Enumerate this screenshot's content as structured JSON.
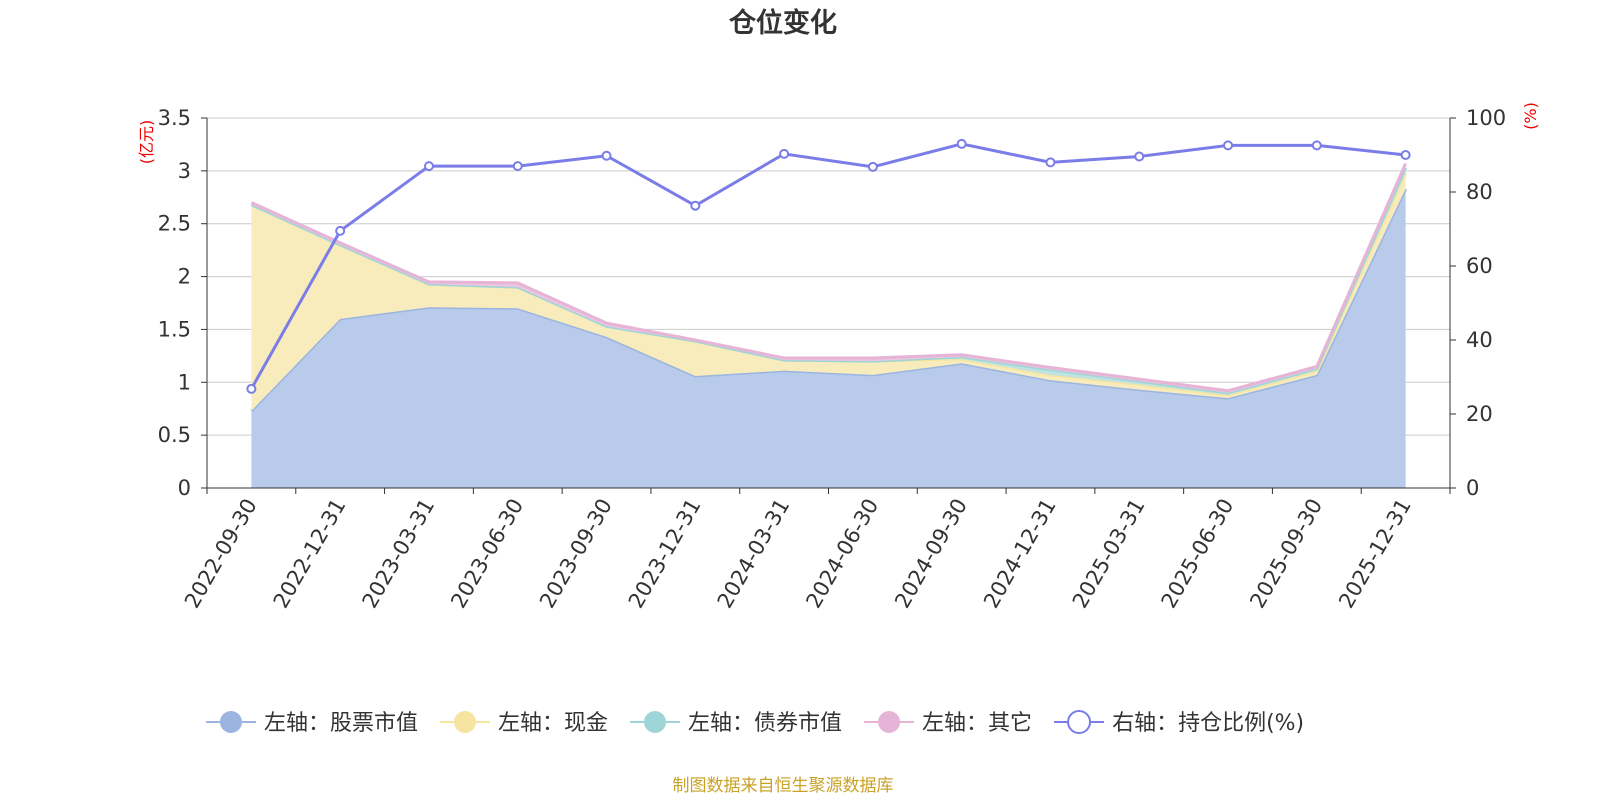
{
  "chart_data": {
    "type": "area",
    "title": "仓位变化",
    "source": "制图数据来自恒生聚源数据库",
    "left_axis_unit": "(亿元)",
    "right_axis_unit": "(%)",
    "left_ylim": [
      0,
      3.5
    ],
    "right_ylim": [
      0,
      100
    ],
    "left_ticks": [
      "0",
      "0.5",
      "1",
      "1.5",
      "2",
      "2.5",
      "3",
      "3.5"
    ],
    "right_ticks": [
      "0",
      "20",
      "40",
      "60",
      "80",
      "100"
    ],
    "categories": [
      "2022-09-30",
      "2022-12-31",
      "2023-03-31",
      "2023-06-30",
      "2023-09-30",
      "2023-12-31",
      "2024-03-31",
      "2024-06-30",
      "2024-09-30",
      "2024-12-31",
      "2025-03-31",
      "2025-06-30",
      "2025-09-30",
      "2025-12-31"
    ],
    "series": [
      {
        "name": "左轴：股票市值",
        "axis": "left",
        "stack": true,
        "color": "#9bb4e0",
        "fill": "#b8cbea",
        "values": [
          0.73,
          1.6,
          1.71,
          1.7,
          1.43,
          1.06,
          1.11,
          1.07,
          1.18,
          1.02,
          0.93,
          0.85,
          1.07,
          2.83
        ]
      },
      {
        "name": "左轴：现金",
        "axis": "left",
        "stack": true,
        "color": "#f5e5a1",
        "fill": "#f8ecbd",
        "values": [
          1.95,
          0.7,
          0.22,
          0.2,
          0.1,
          0.33,
          0.1,
          0.13,
          0.04,
          0.05,
          0.05,
          0.03,
          0.04,
          0.15
        ]
      },
      {
        "name": "左轴：债券市值",
        "axis": "left",
        "stack": true,
        "color": "#9fd5d6",
        "fill": "#bfe3e3",
        "values": [
          0.0,
          0.0,
          0.0,
          0.0,
          0.0,
          0.0,
          0.0,
          0.0,
          0.02,
          0.05,
          0.03,
          0.02,
          0.02,
          0.05
        ]
      },
      {
        "name": "左轴：其它",
        "axis": "left",
        "stack": true,
        "color": "#e6b4d6",
        "fill": "#ecc6e0",
        "values": [
          0.02,
          0.02,
          0.02,
          0.04,
          0.03,
          0.01,
          0.02,
          0.03,
          0.02,
          0.02,
          0.02,
          0.02,
          0.02,
          0.04
        ]
      },
      {
        "name": "右轴：持仓比例(%)",
        "axis": "right",
        "stack": false,
        "color": "#7a7de8",
        "values": [
          26.8,
          69.5,
          87.0,
          87.0,
          89.8,
          76.3,
          90.3,
          86.8,
          93.0,
          88.0,
          89.6,
          92.6,
          92.6,
          90.0
        ]
      }
    ]
  }
}
